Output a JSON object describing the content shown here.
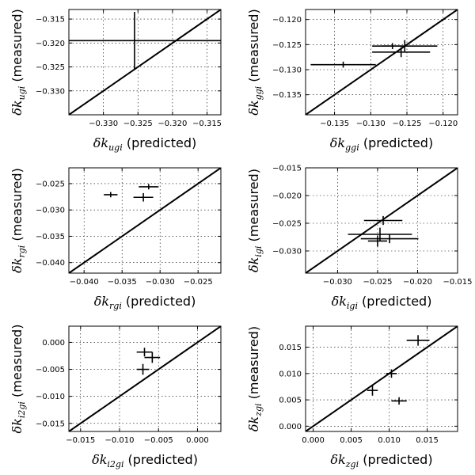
{
  "chart_data": [
    {
      "type": "scatter",
      "panel": "ugi",
      "xlabel_sym": "δk",
      "xlabel_sub": "ugi",
      "xlabel_suffix": " (predicted)",
      "ylabel_sym": "δk",
      "ylabel_sub": "ugi",
      "ylabel_suffix": " (measured)",
      "xlim": [
        -0.335,
        -0.313
      ],
      "ylim": [
        -0.335,
        -0.313
      ],
      "xticks": [
        -0.33,
        -0.325,
        -0.32,
        -0.315
      ],
      "yticks": [
        -0.33,
        -0.325,
        -0.32,
        -0.315
      ],
      "xtick_labels": [
        "−0.330",
        "−0.325",
        "−0.320",
        "−0.315"
      ],
      "ytick_labels": [
        "−0.330",
        "−0.325",
        "−0.320",
        "−0.315"
      ],
      "grid": true,
      "points": [
        {
          "x": -0.3255,
          "y": -0.3195,
          "xerr": 0.015,
          "yerr": 0.006
        }
      ]
    },
    {
      "type": "scatter",
      "panel": "ggi",
      "xlabel_sym": "δk",
      "xlabel_sub": "ggi",
      "xlabel_suffix": " (predicted)",
      "ylabel_sym": "δk",
      "ylabel_sub": "ggi",
      "ylabel_suffix": " (measured)",
      "xlim": [
        -0.139,
        -0.118
      ],
      "ylim": [
        -0.139,
        -0.118
      ],
      "xticks": [
        -0.135,
        -0.13,
        -0.125,
        -0.12
      ],
      "yticks": [
        -0.135,
        -0.13,
        -0.125,
        -0.12
      ],
      "xtick_labels": [
        "−0.135",
        "−0.130",
        "−0.125",
        "−0.120"
      ],
      "ytick_labels": [
        "−0.135",
        "−0.130",
        "−0.125",
        "−0.120"
      ],
      "grid": true,
      "points": [
        {
          "x": -0.1338,
          "y": -0.129,
          "xerr": 0.0045,
          "yerr": 0.0006
        },
        {
          "x": -0.127,
          "y": -0.1253,
          "xerr": 0.0015,
          "yerr": 0.0006
        },
        {
          "x": -0.1253,
          "y": -0.1253,
          "xerr": 0.0045,
          "yerr": 0.0012
        },
        {
          "x": -0.1258,
          "y": -0.1265,
          "xerr": 0.004,
          "yerr": 0.001
        }
      ]
    },
    {
      "type": "scatter",
      "panel": "rgi",
      "xlabel_sym": "δk",
      "xlabel_sub": "rgi",
      "xlabel_suffix": " (predicted)",
      "ylabel_sym": "δk",
      "ylabel_sub": "rgi",
      "ylabel_suffix": " (measured)",
      "xlim": [
        -0.042,
        -0.022
      ],
      "ylim": [
        -0.042,
        -0.022
      ],
      "xticks": [
        -0.04,
        -0.035,
        -0.03,
        -0.025
      ],
      "yticks": [
        -0.04,
        -0.035,
        -0.03,
        -0.025
      ],
      "xtick_labels": [
        "−0.040",
        "−0.035",
        "−0.030",
        "−0.025"
      ],
      "ytick_labels": [
        "−0.040",
        "−0.035",
        "−0.030",
        "−0.025"
      ],
      "grid": true,
      "points": [
        {
          "x": -0.0365,
          "y": -0.0271,
          "xerr": 0.0009,
          "yerr": 0.0005
        },
        {
          "x": -0.0315,
          "y": -0.0256,
          "xerr": 0.0013,
          "yerr": 0.0005
        },
        {
          "x": -0.0322,
          "y": -0.0276,
          "xerr": 0.0013,
          "yerr": 0.0008
        }
      ]
    },
    {
      "type": "scatter",
      "panel": "igi",
      "xlabel_sym": "δk",
      "xlabel_sub": "igi",
      "xlabel_suffix": " (predicted)",
      "ylabel_sym": "δk",
      "ylabel_sub": "igi",
      "ylabel_suffix": " (measured)",
      "xlim": [
        -0.034,
        -0.015
      ],
      "ylim": [
        -0.034,
        -0.015
      ],
      "xticks": [
        -0.03,
        -0.025,
        -0.02,
        -0.015
      ],
      "yticks": [
        -0.03,
        -0.025,
        -0.02,
        -0.015
      ],
      "xtick_labels": [
        "−0.030",
        "−0.025",
        "−0.020",
        "−0.015"
      ],
      "ytick_labels": [
        "−0.030",
        "−0.025",
        "−0.020",
        "−0.015"
      ],
      "grid": true,
      "points": [
        {
          "x": -0.0243,
          "y": -0.0245,
          "xerr": 0.0024,
          "yerr": 0.0008
        },
        {
          "x": -0.0247,
          "y": -0.027,
          "xerr": 0.004,
          "yerr": 0.0012
        },
        {
          "x": -0.0235,
          "y": -0.0278,
          "xerr": 0.0036,
          "yerr": 0.0008
        },
        {
          "x": -0.025,
          "y": -0.0282,
          "xerr": 0.0012,
          "yerr": 0.001
        }
      ]
    },
    {
      "type": "scatter",
      "panel": "i2gi",
      "xlabel_sym": "δk",
      "xlabel_sub": "i2gi",
      "xlabel_suffix": " (predicted)",
      "ylabel_sym": "δk",
      "ylabel_sub": "i2gi",
      "ylabel_suffix": " (measured)",
      "xlim": [
        -0.0165,
        0.003
      ],
      "ylim": [
        -0.0165,
        0.003
      ],
      "xticks": [
        -0.015,
        -0.01,
        -0.005,
        0.0
      ],
      "yticks": [
        -0.015,
        -0.01,
        -0.005,
        0.0
      ],
      "xtick_labels": [
        "−0.015",
        "−0.010",
        "−0.005",
        "0.000"
      ],
      "ytick_labels": [
        "−0.015",
        "−0.010",
        "−0.005",
        "0.000"
      ],
      "grid": true,
      "points": [
        {
          "x": -0.0068,
          "y": -0.0018,
          "xerr": 0.001,
          "yerr": 0.0008
        },
        {
          "x": -0.0058,
          "y": -0.0028,
          "xerr": 0.001,
          "yerr": 0.001
        },
        {
          "x": -0.007,
          "y": -0.005,
          "xerr": 0.0008,
          "yerr": 0.001
        }
      ]
    },
    {
      "type": "scatter",
      "panel": "zgi",
      "xlabel_sym": "δk",
      "xlabel_sub": "zgi",
      "xlabel_suffix": " (predicted)",
      "ylabel_sym": "δk",
      "ylabel_sub": "zgi",
      "ylabel_suffix": " (measured)",
      "xlim": [
        -0.001,
        0.019
      ],
      "ylim": [
        -0.001,
        0.019
      ],
      "xticks": [
        0.0,
        0.005,
        0.01,
        0.015
      ],
      "yticks": [
        0.0,
        0.005,
        0.01,
        0.015
      ],
      "xtick_labels": [
        "0.000",
        "0.005",
        "0.010",
        "0.015"
      ],
      "ytick_labels": [
        "0.000",
        "0.005",
        "0.010",
        "0.015"
      ],
      "grid": true,
      "points": [
        {
          "x": 0.0138,
          "y": 0.0163,
          "xerr": 0.0015,
          "yerr": 0.001
        },
        {
          "x": 0.0103,
          "y": 0.01,
          "xerr": 0.0007,
          "yerr": 0.0008
        },
        {
          "x": 0.0078,
          "y": 0.0068,
          "xerr": 0.0007,
          "yerr": 0.001
        },
        {
          "x": 0.0113,
          "y": 0.0048,
          "xerr": 0.001,
          "yerr": 0.0007
        }
      ]
    }
  ]
}
